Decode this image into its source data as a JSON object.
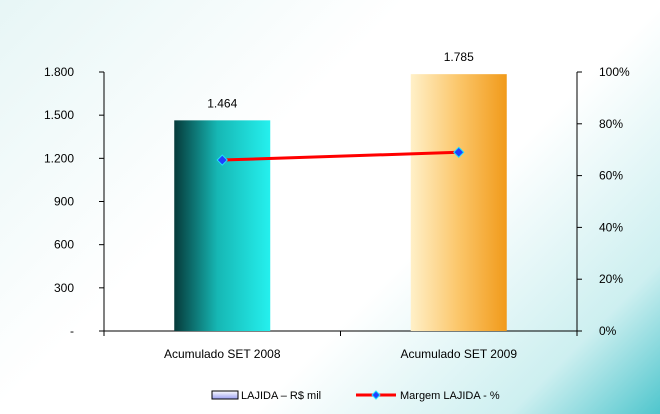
{
  "chart_data": {
    "type": "bar",
    "categories": [
      "Acumulado SET  2008",
      "Acumulado SET  2009"
    ],
    "series": [
      {
        "name": "LAJIDA – R$ mil",
        "kind": "bar",
        "axis": "left",
        "values": [
          1464,
          1785
        ],
        "data_labels": [
          "1.464",
          "1.785"
        ],
        "colors": [
          "#20d4d0",
          "#f9b94c"
        ]
      },
      {
        "name": "Margem LAJIDA - %",
        "kind": "line",
        "axis": "right",
        "values": [
          66,
          69
        ],
        "color": "#ff0000",
        "marker_color": "#1e40ff"
      }
    ],
    "left_axis": {
      "ylim": [
        0,
        1800
      ],
      "ticks": [
        0,
        300,
        600,
        900,
        1200,
        1500,
        1800
      ],
      "tick_labels": [
        "-",
        "300",
        "600",
        "900",
        "1.200",
        "1.500",
        "1.800"
      ]
    },
    "right_axis": {
      "ylim": [
        0,
        100
      ],
      "ticks": [
        0,
        20,
        40,
        60,
        80,
        100
      ],
      "tick_labels": [
        "0%",
        "20%",
        "40%",
        "60%",
        "80%",
        "100%"
      ]
    },
    "grid": false,
    "legend": "bottom"
  }
}
